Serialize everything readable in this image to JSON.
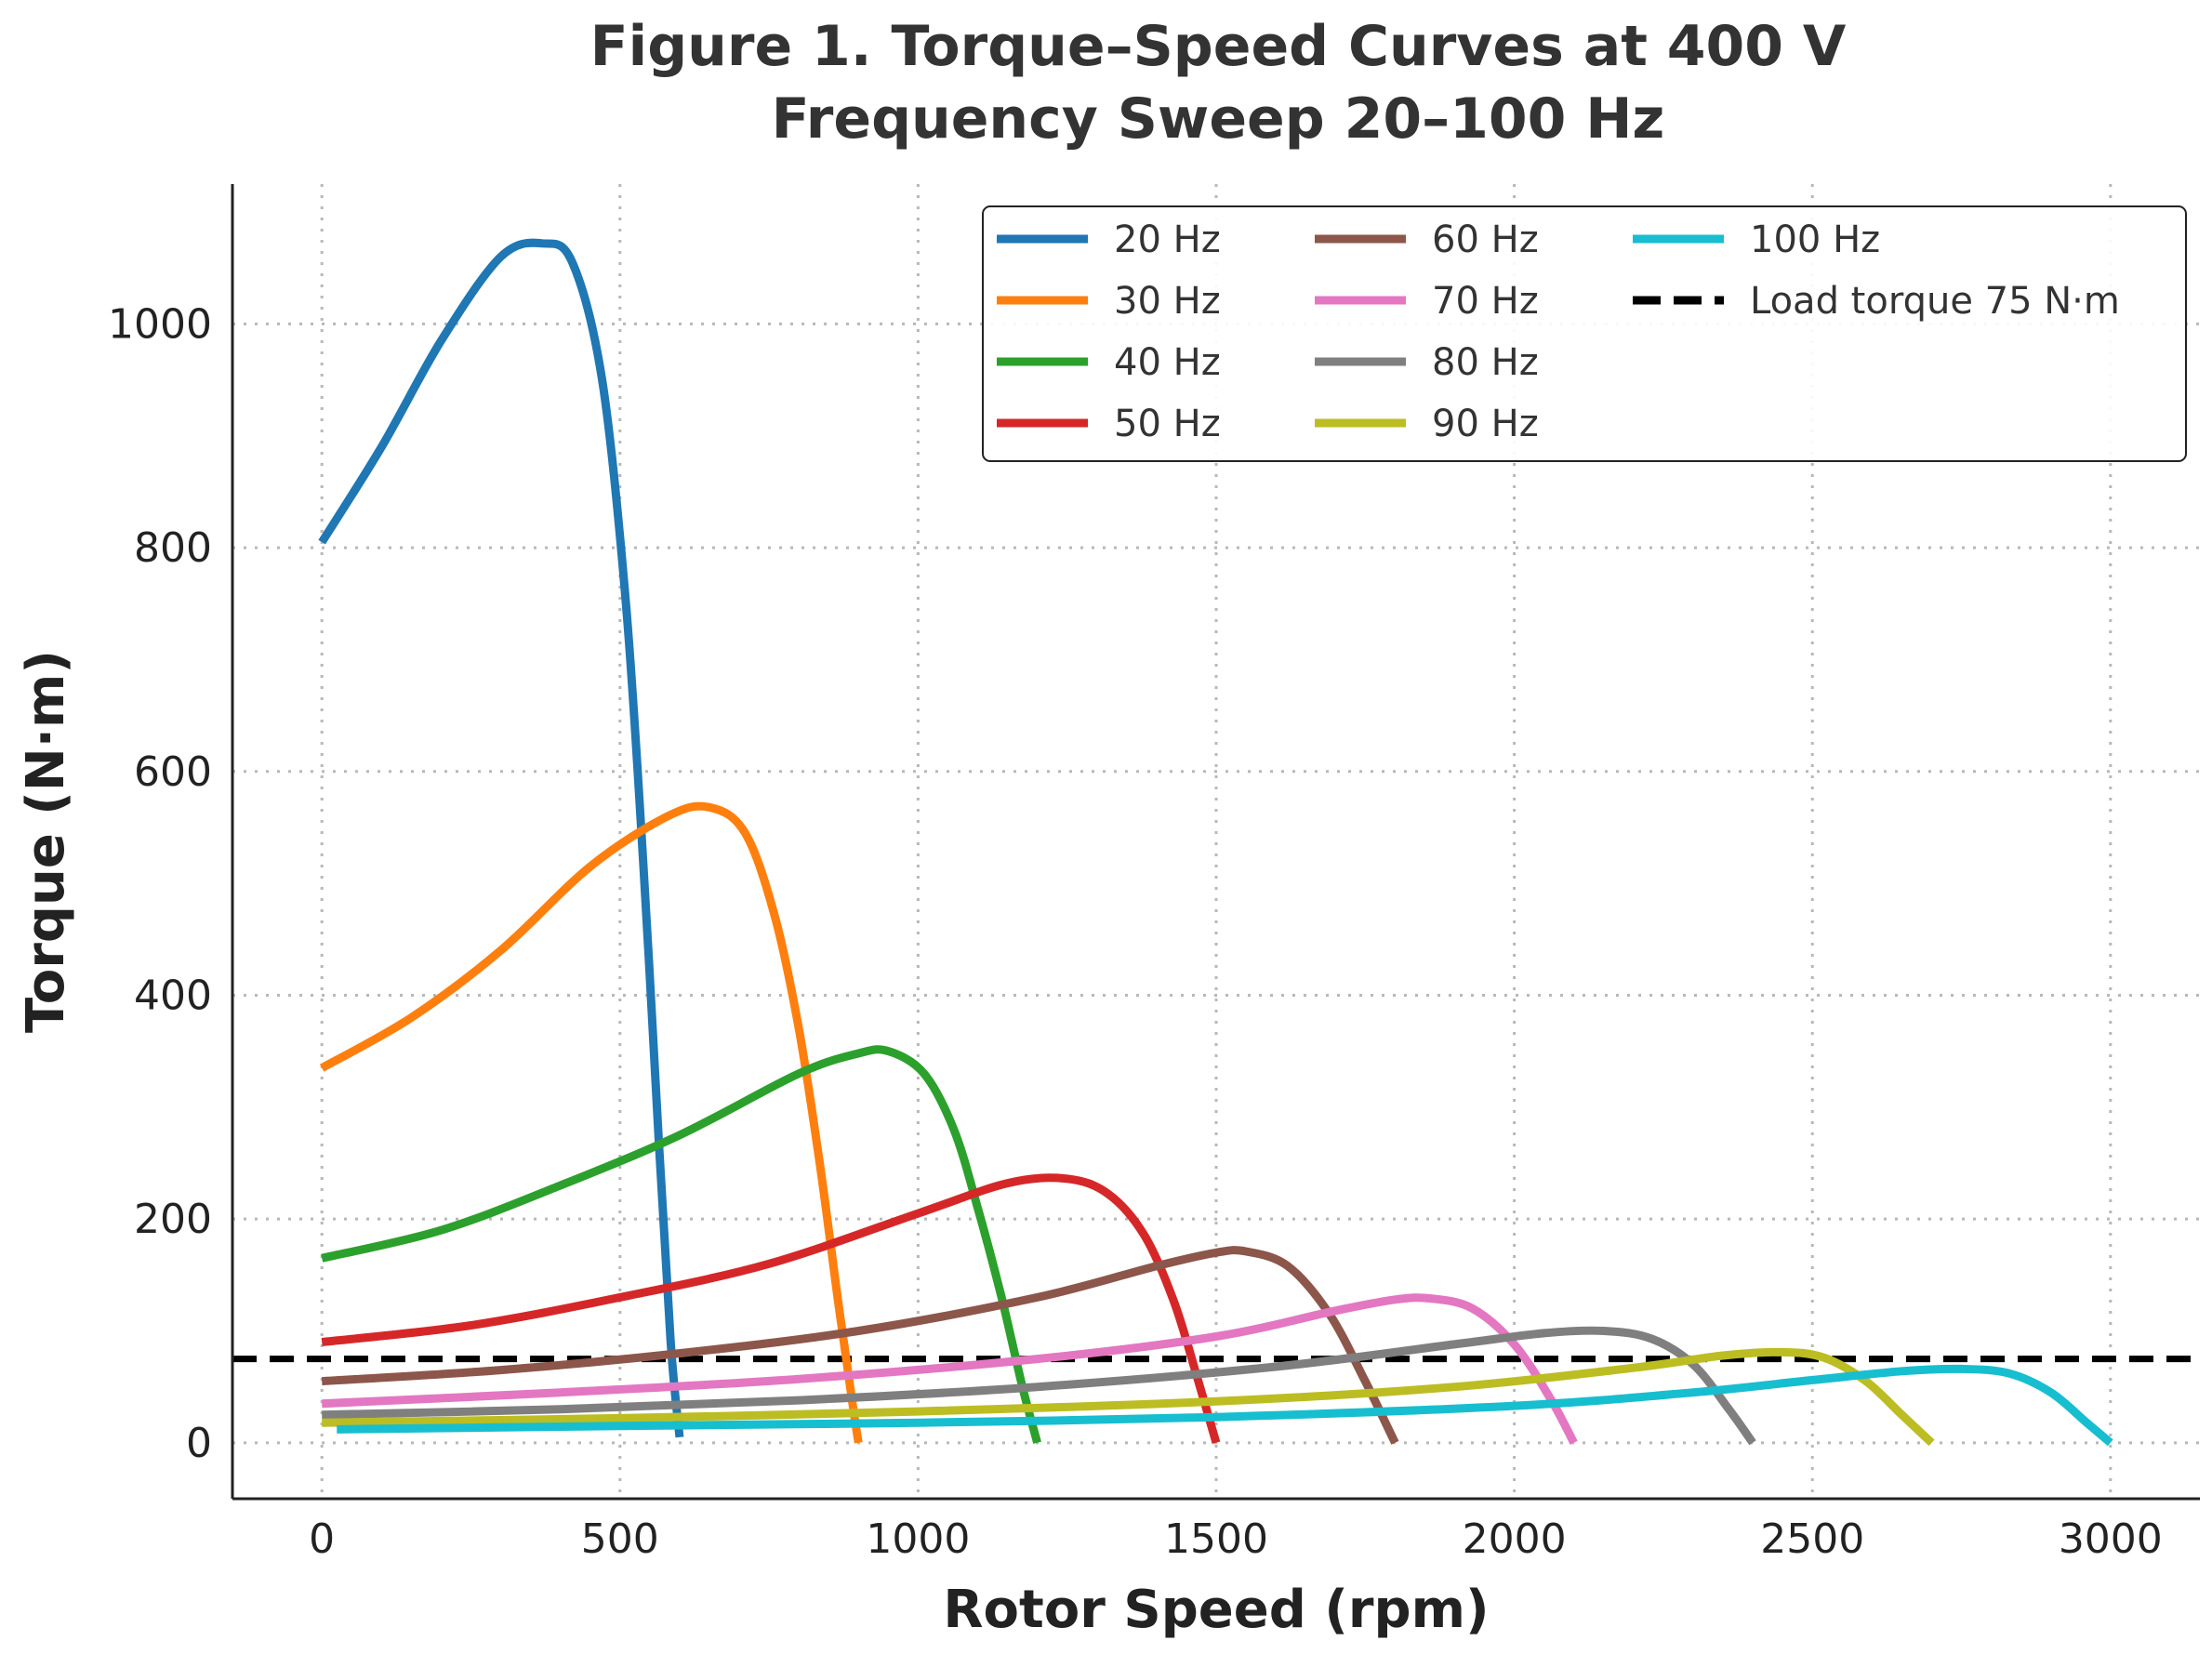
{
  "chart_data": {
    "type": "line",
    "title_line1": "Figure 1. Torque–Speed Curves at 400 V",
    "title_line2": "Frequency Sweep 20–100 Hz",
    "xlabel": "Rotor Speed (rpm)",
    "ylabel": "Torque (N·m)",
    "xlim": [
      -150,
      3150
    ],
    "ylim": [
      -50,
      1125
    ],
    "x_ticks": [
      0,
      500,
      1000,
      1500,
      2000,
      2500,
      3000
    ],
    "y_ticks": [
      0,
      200,
      400,
      600,
      800,
      1000
    ],
    "grid": true,
    "grid_style": "dotted",
    "legend_position": "top-right",
    "legend_columns": 3,
    "load_torque": {
      "name": "Load torque 75 N·m",
      "value": 75,
      "color": "#000000"
    },
    "series": [
      {
        "name": "20 Hz",
        "color": "#1f77b4",
        "x": [
          0,
          100,
          200,
          300,
          370,
          420,
          470,
          510,
          540,
          565,
          585,
          600
        ],
        "y": [
          805,
          890,
          985,
          1060,
          1072,
          1055,
          950,
          750,
          510,
          270,
          90,
          5
        ]
      },
      {
        "name": "30 Hz",
        "color": "#ff7f0e",
        "x": [
          0,
          150,
          300,
          450,
          580,
          650,
          710,
          760,
          800,
          835,
          865,
          890,
          900
        ],
        "y": [
          335,
          380,
          440,
          515,
          560,
          568,
          545,
          470,
          370,
          250,
          130,
          35,
          0
        ]
      },
      {
        "name": "40 Hz",
        "color": "#2ca02c",
        "x": [
          0,
          200,
          400,
          600,
          800,
          900,
          950,
          1010,
          1060,
          1100,
          1140,
          1175,
          1200
        ],
        "y": [
          165,
          190,
          230,
          275,
          330,
          348,
          350,
          330,
          280,
          210,
          130,
          50,
          0
        ]
      },
      {
        "name": "50 Hz",
        "color": "#d62728",
        "x": [
          0,
          250,
          500,
          750,
          1000,
          1150,
          1250,
          1320,
          1380,
          1430,
          1470,
          1500
        ],
        "y": [
          90,
          105,
          130,
          160,
          205,
          232,
          236,
          222,
          185,
          125,
          55,
          0
        ]
      },
      {
        "name": "60 Hz",
        "color": "#8c564b",
        "x": [
          0,
          300,
          600,
          900,
          1200,
          1400,
          1500,
          1550,
          1620,
          1690,
          1750,
          1800
        ],
        "y": [
          55,
          65,
          80,
          100,
          130,
          158,
          170,
          171,
          158,
          115,
          55,
          0
        ]
      },
      {
        "name": "70 Hz",
        "color": "#e377c2",
        "x": [
          0,
          400,
          800,
          1200,
          1500,
          1700,
          1800,
          1860,
          1930,
          2000,
          2060,
          2100
        ],
        "y": [
          35,
          45,
          57,
          75,
          95,
          118,
          128,
          129,
          120,
          88,
          40,
          0
        ]
      },
      {
        "name": "80 Hz",
        "color": "#7f7f7f",
        "x": [
          0,
          400,
          800,
          1200,
          1600,
          1900,
          2050,
          2150,
          2230,
          2300,
          2360,
          2400
        ],
        "y": [
          25,
          30,
          38,
          50,
          68,
          88,
          98,
          100,
          93,
          70,
          30,
          0
        ]
      },
      {
        "name": "90 Hz",
        "color": "#bcbd22",
        "x": [
          0,
          500,
          1000,
          1500,
          1900,
          2200,
          2350,
          2450,
          2520,
          2590,
          2650,
          2700
        ],
        "y": [
          18,
          22,
          28,
          37,
          50,
          67,
          78,
          81,
          76,
          55,
          25,
          0
        ]
      },
      {
        "name": "100 Hz",
        "color": "#17becf",
        "x": [
          25,
          500,
          1000,
          1500,
          2000,
          2300,
          2500,
          2650,
          2750,
          2830,
          2900,
          2960,
          3000
        ],
        "y": [
          12,
          15,
          18,
          23,
          33,
          45,
          56,
          64,
          66,
          62,
          45,
          18,
          0
        ]
      }
    ]
  }
}
